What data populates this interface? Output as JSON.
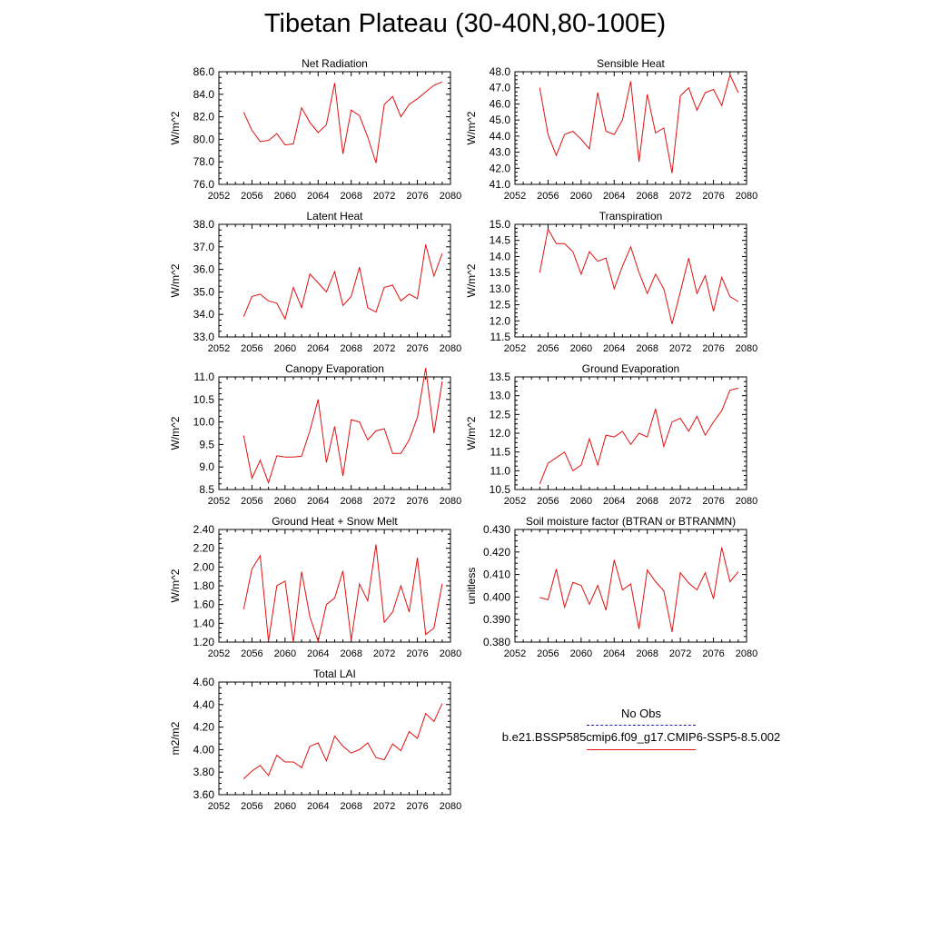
{
  "title": "Tibetan Plateau (30-40N,80-100E)",
  "colors": {
    "model": "#e01010",
    "obs": "#1a1aa6",
    "axis": "#000000"
  },
  "legend": {
    "obs_label": "No Obs",
    "model_label": "b.e21.BSSP585cmip6.f09_g17.CMIP6-SSP5-8.5.002"
  },
  "chart_data": [
    {
      "type": "line",
      "title": "Net Radiation",
      "ylabel": "W/m^2",
      "xlim": [
        2052,
        2080
      ],
      "ylim": [
        76.0,
        86.0
      ],
      "xticks": [
        "2052",
        "2056",
        "2060",
        "2064",
        "2068",
        "2072",
        "2076",
        "2080"
      ],
      "yticks": [
        "76.0",
        "78.0",
        "80.0",
        "82.0",
        "84.0",
        "86.0"
      ],
      "series": [
        {
          "x": [
            2055,
            2056,
            2057,
            2058,
            2059,
            2060,
            2061,
            2062,
            2063,
            2064,
            2065,
            2066,
            2067,
            2068,
            2069,
            2070,
            2071,
            2072,
            2073,
            2074,
            2075,
            2076,
            2077,
            2078,
            2079
          ],
          "values": [
            82.4,
            80.8,
            79.8,
            79.9,
            80.5,
            79.5,
            79.6,
            82.8,
            81.5,
            80.6,
            81.3,
            85.0,
            78.7,
            82.6,
            82.1,
            80.2,
            77.9,
            83.1,
            83.8,
            82.0,
            83.1,
            83.6,
            84.2,
            84.8,
            85.1
          ]
        }
      ]
    },
    {
      "type": "line",
      "title": "Sensible Heat",
      "ylabel": "W/m^2",
      "xlim": [
        2052,
        2080
      ],
      "ylim": [
        41.0,
        48.0
      ],
      "xticks": [
        "2052",
        "2056",
        "2060",
        "2064",
        "2068",
        "2072",
        "2076",
        "2080"
      ],
      "yticks": [
        "41.0",
        "42.0",
        "43.0",
        "44.0",
        "45.0",
        "46.0",
        "47.0",
        "48.0"
      ],
      "series": [
        {
          "x": [
            2055,
            2056,
            2057,
            2058,
            2059,
            2060,
            2061,
            2062,
            2063,
            2064,
            2065,
            2066,
            2067,
            2068,
            2069,
            2070,
            2071,
            2072,
            2073,
            2074,
            2075,
            2076,
            2077,
            2078,
            2079
          ],
          "values": [
            47.0,
            44.1,
            42.8,
            44.1,
            44.3,
            43.8,
            43.2,
            46.7,
            44.3,
            44.1,
            45.0,
            47.4,
            42.4,
            46.6,
            44.2,
            44.5,
            41.7,
            46.5,
            47.0,
            45.6,
            46.7,
            46.9,
            45.9,
            47.8,
            46.7
          ]
        }
      ]
    },
    {
      "type": "line",
      "title": "Latent Heat",
      "ylabel": "W/m^2",
      "xlim": [
        2052,
        2080
      ],
      "ylim": [
        33.0,
        38.0
      ],
      "xticks": [
        "2052",
        "2056",
        "2060",
        "2064",
        "2068",
        "2072",
        "2076",
        "2080"
      ],
      "yticks": [
        "33.0",
        "34.0",
        "35.0",
        "36.0",
        "37.0",
        "38.0"
      ],
      "series": [
        {
          "x": [
            2055,
            2056,
            2057,
            2058,
            2059,
            2060,
            2061,
            2062,
            2063,
            2064,
            2065,
            2066,
            2067,
            2068,
            2069,
            2070,
            2071,
            2072,
            2073,
            2074,
            2075,
            2076,
            2077,
            2078,
            2079
          ],
          "values": [
            33.9,
            34.8,
            34.9,
            34.6,
            34.5,
            33.8,
            35.2,
            34.3,
            35.8,
            35.4,
            35.0,
            35.9,
            34.4,
            34.8,
            36.1,
            34.3,
            34.1,
            35.2,
            35.3,
            34.6,
            34.9,
            34.7,
            37.1,
            35.7,
            36.7
          ]
        }
      ]
    },
    {
      "type": "line",
      "title": "Transpiration",
      "ylabel": "W/m^2",
      "xlim": [
        2052,
        2080
      ],
      "ylim": [
        11.5,
        15.0
      ],
      "xticks": [
        "2052",
        "2056",
        "2060",
        "2064",
        "2068",
        "2072",
        "2076",
        "2080"
      ],
      "yticks": [
        "11.5",
        "12.0",
        "12.5",
        "13.0",
        "13.5",
        "14.0",
        "14.5",
        "15.0"
      ],
      "series": [
        {
          "x": [
            2055,
            2056,
            2057,
            2058,
            2059,
            2060,
            2061,
            2062,
            2063,
            2064,
            2065,
            2066,
            2067,
            2068,
            2069,
            2070,
            2071,
            2072,
            2073,
            2074,
            2075,
            2076,
            2077,
            2078,
            2079
          ],
          "values": [
            13.5,
            14.85,
            14.4,
            14.4,
            14.15,
            13.45,
            14.15,
            13.85,
            13.95,
            13.0,
            13.7,
            14.3,
            13.5,
            12.85,
            13.45,
            13.0,
            11.9,
            12.9,
            13.95,
            12.85,
            13.4,
            12.3,
            13.35,
            12.75,
            12.6
          ]
        }
      ]
    },
    {
      "type": "line",
      "title": "Canopy Evaporation",
      "ylabel": "W/m^2",
      "xlim": [
        2052,
        2080
      ],
      "ylim": [
        8.5,
        11.0
      ],
      "xticks": [
        "2052",
        "2056",
        "2060",
        "2064",
        "2068",
        "2072",
        "2076",
        "2080"
      ],
      "yticks": [
        "8.5",
        "9.0",
        "9.5",
        "10.0",
        "10.5",
        "11.0"
      ],
      "series": [
        {
          "x": [
            2055,
            2056,
            2057,
            2058,
            2059,
            2060,
            2061,
            2062,
            2063,
            2064,
            2065,
            2066,
            2067,
            2068,
            2069,
            2070,
            2071,
            2072,
            2073,
            2074,
            2075,
            2076,
            2077,
            2078,
            2079
          ],
          "values": [
            9.7,
            8.75,
            9.15,
            8.65,
            9.25,
            9.22,
            9.22,
            9.24,
            9.8,
            10.5,
            9.1,
            9.9,
            8.8,
            10.05,
            10.0,
            9.6,
            9.8,
            9.85,
            9.3,
            9.3,
            9.6,
            10.1,
            11.2,
            9.75,
            10.9
          ]
        }
      ]
    },
    {
      "type": "line",
      "title": "Ground Evaporation",
      "ylabel": "W/m^2",
      "xlim": [
        2052,
        2080
      ],
      "ylim": [
        10.5,
        13.5
      ],
      "xticks": [
        "2052",
        "2056",
        "2060",
        "2064",
        "2068",
        "2072",
        "2076",
        "2080"
      ],
      "yticks": [
        "10.5",
        "11.0",
        "11.5",
        "12.0",
        "12.5",
        "13.0",
        "13.5"
      ],
      "series": [
        {
          "x": [
            2055,
            2056,
            2057,
            2058,
            2059,
            2060,
            2061,
            2062,
            2063,
            2064,
            2065,
            2066,
            2067,
            2068,
            2069,
            2070,
            2071,
            2072,
            2073,
            2074,
            2075,
            2076,
            2077,
            2078,
            2079
          ],
          "values": [
            10.65,
            11.2,
            11.35,
            11.5,
            11.0,
            11.15,
            11.85,
            11.15,
            11.95,
            11.9,
            12.05,
            11.7,
            12.0,
            11.9,
            12.65,
            11.65,
            12.3,
            12.4,
            12.05,
            12.45,
            11.95,
            12.3,
            12.6,
            13.15,
            13.2
          ]
        }
      ]
    },
    {
      "type": "line",
      "title": "Ground Heat + Snow Melt",
      "ylabel": "W/m^2",
      "xlim": [
        2052,
        2080
      ],
      "ylim": [
        1.2,
        2.4
      ],
      "xticks": [
        "2052",
        "2056",
        "2060",
        "2064",
        "2068",
        "2072",
        "2076",
        "2080"
      ],
      "yticks": [
        "1.20",
        "1.40",
        "1.60",
        "1.80",
        "2.00",
        "2.20",
        "2.40"
      ],
      "series": [
        {
          "x": [
            2055,
            2056,
            2057,
            2058,
            2059,
            2060,
            2061,
            2062,
            2063,
            2064,
            2065,
            2066,
            2067,
            2068,
            2069,
            2070,
            2071,
            2072,
            2073,
            2074,
            2075,
            2076,
            2077,
            2078,
            2079
          ],
          "values": [
            1.55,
            1.98,
            2.12,
            1.21,
            1.8,
            1.85,
            1.2,
            1.95,
            1.47,
            1.21,
            1.6,
            1.67,
            1.96,
            1.22,
            1.82,
            1.64,
            2.24,
            1.41,
            1.52,
            1.8,
            1.52,
            2.1,
            1.28,
            1.35,
            1.82
          ]
        }
      ]
    },
    {
      "type": "line",
      "title": "Soil moisture factor (BTRAN or BTRANMN)",
      "ylabel": "unitless",
      "xlim": [
        2052,
        2080
      ],
      "ylim": [
        0.38,
        0.43
      ],
      "xticks": [
        "2052",
        "2056",
        "2060",
        "2064",
        "2068",
        "2072",
        "2076",
        "2080"
      ],
      "yticks": [
        "0.380",
        "0.390",
        "0.400",
        "0.410",
        "0.420",
        "0.430"
      ],
      "series": [
        {
          "x": [
            2055,
            2056,
            2057,
            2058,
            2059,
            2060,
            2061,
            2062,
            2063,
            2064,
            2065,
            2066,
            2067,
            2068,
            2069,
            2070,
            2071,
            2072,
            2073,
            2074,
            2075,
            2076,
            2077,
            2078,
            2079
          ],
          "values": [
            0.3998,
            0.3988,
            0.4124,
            0.3955,
            0.4065,
            0.4052,
            0.3968,
            0.4052,
            0.3942,
            0.4165,
            0.4032,
            0.4058,
            0.3858,
            0.412,
            0.4068,
            0.4028,
            0.3845,
            0.4108,
            0.4062,
            0.4032,
            0.4108,
            0.3992,
            0.422,
            0.4068,
            0.4112
          ]
        }
      ]
    },
    {
      "type": "line",
      "title": "Total LAI",
      "ylabel": "m2/m2",
      "xlim": [
        2052,
        2080
      ],
      "ylim": [
        3.6,
        4.6
      ],
      "xticks": [
        "2052",
        "2056",
        "2060",
        "2064",
        "2068",
        "2072",
        "2076",
        "2080"
      ],
      "yticks": [
        "3.60",
        "3.80",
        "4.00",
        "4.20",
        "4.40",
        "4.60"
      ],
      "series": [
        {
          "x": [
            2055,
            2056,
            2057,
            2058,
            2059,
            2060,
            2061,
            2062,
            2063,
            2064,
            2065,
            2066,
            2067,
            2068,
            2069,
            2070,
            2071,
            2072,
            2073,
            2074,
            2075,
            2076,
            2077,
            2078,
            2079
          ],
          "values": [
            3.74,
            3.81,
            3.86,
            3.77,
            3.95,
            3.89,
            3.89,
            3.84,
            4.03,
            4.06,
            3.9,
            4.12,
            4.03,
            3.97,
            4.0,
            4.06,
            3.93,
            3.91,
            4.05,
            3.99,
            4.16,
            4.1,
            4.32,
            4.25,
            4.41
          ]
        }
      ]
    }
  ]
}
